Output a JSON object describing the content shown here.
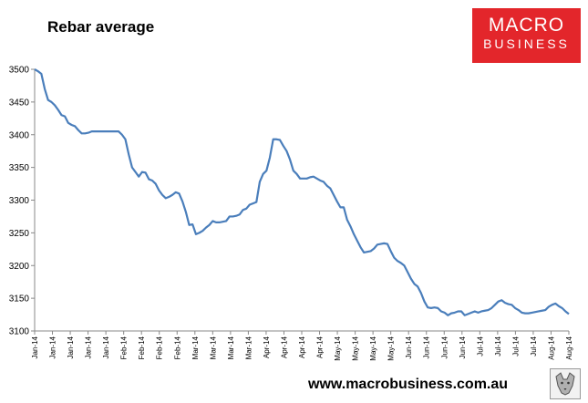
{
  "page": {
    "title": "Rebar average",
    "website": "www.macrobusiness.com.au",
    "logo": {
      "line1": "MACRO",
      "line2": "BUSINESS",
      "color": "#e3262b"
    },
    "mascot_icon": "wolf-icon"
  },
  "chart_data": {
    "type": "line",
    "title": "Rebar average",
    "xlabel": "",
    "ylabel": "",
    "ylim": [
      3100,
      3500
    ],
    "yticks": [
      3100,
      3150,
      3200,
      3250,
      3300,
      3350,
      3400,
      3450,
      3500
    ],
    "grid": false,
    "legend": "none",
    "line_color": "#4a7ebb",
    "xticks": [
      "Jan-14",
      "Jan-14",
      "Jan-14",
      "Jan-14",
      "Jan-14",
      "Feb-14",
      "Feb-14",
      "Feb-14",
      "Feb-14",
      "Mar-14",
      "Mar-14",
      "Mar-14",
      "Mar-14",
      "Apr-14",
      "Apr-14",
      "Apr-14",
      "Apr-14",
      "May-14",
      "May-14",
      "May-14",
      "May-14",
      "Jun-14",
      "Jun-14",
      "Jun-14",
      "Jun-14",
      "Jul-14",
      "Jul-14",
      "Jul-14",
      "Jul-14",
      "Aug-14",
      "Aug-14"
    ],
    "series": [
      {
        "values": [
          3500,
          3497,
          3493,
          3470,
          3453,
          3450,
          3445,
          3438,
          3430,
          3428,
          3418,
          3415,
          3413,
          3407,
          3402,
          3402,
          3403,
          3405,
          3405,
          3405,
          3405,
          3405,
          3405,
          3405,
          3405,
          3405,
          3400,
          3393,
          3370,
          3350,
          3343,
          3336,
          3343,
          3342,
          3332,
          3330,
          3325,
          3315,
          3308,
          3303,
          3305,
          3308,
          3312,
          3310,
          3298,
          3282,
          3262,
          3263,
          3248,
          3250,
          3253,
          3258,
          3262,
          3268,
          3266,
          3266,
          3267,
          3268,
          3275,
          3275,
          3276,
          3278,
          3285,
          3287,
          3293,
          3295,
          3297,
          3328,
          3340,
          3345,
          3365,
          3393,
          3393,
          3392,
          3383,
          3375,
          3362,
          3345,
          3340,
          3333,
          3333,
          3333,
          3335,
          3336,
          3333,
          3330,
          3328,
          3322,
          3318,
          3308,
          3298,
          3289,
          3289,
          3270,
          3260,
          3248,
          3238,
          3228,
          3220,
          3221,
          3222,
          3226,
          3232,
          3233,
          3234,
          3233,
          3222,
          3212,
          3207,
          3204,
          3200,
          3190,
          3180,
          3172,
          3168,
          3158,
          3145,
          3136,
          3135,
          3136,
          3135,
          3130,
          3128,
          3124,
          3127,
          3128,
          3130,
          3130,
          3124,
          3126,
          3128,
          3130,
          3128,
          3130,
          3131,
          3132,
          3135,
          3140,
          3145,
          3147,
          3143,
          3141,
          3140,
          3135,
          3132,
          3128,
          3127,
          3127,
          3128,
          3129,
          3130,
          3131,
          3132,
          3137,
          3140,
          3142,
          3138,
          3135,
          3130,
          3126
        ]
      }
    ]
  }
}
